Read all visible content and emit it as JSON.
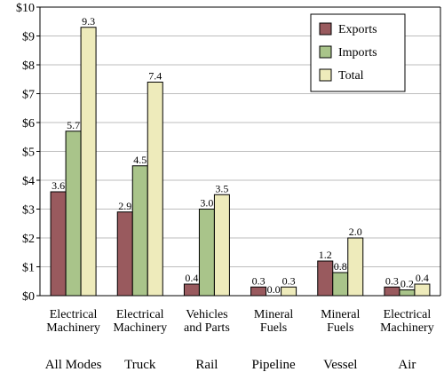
{
  "chart_data": {
    "type": "bar",
    "y_axis": {
      "min": 0,
      "max": 10,
      "step": 1,
      "tick_labels": [
        "$0",
        "$1",
        "$2",
        "$3",
        "$4",
        "$5",
        "$6",
        "$7",
        "$8",
        "$9",
        "$10"
      ]
    },
    "grid": true,
    "legend_position": "top-right",
    "series": [
      {
        "name": "Exports",
        "color": "#995a5e"
      },
      {
        "name": "Imports",
        "color": "#a9c48a"
      },
      {
        "name": "Total",
        "color": "#eeebbb"
      }
    ],
    "categories": [
      {
        "label_lines": [
          "Electrical",
          "Machinery"
        ],
        "group": "All Modes",
        "values": [
          3.6,
          5.7,
          9.3
        ],
        "labels": [
          "3.6",
          "5.7",
          "9.3"
        ]
      },
      {
        "label_lines": [
          "Electrical",
          "Machinery"
        ],
        "group": "Truck",
        "values": [
          2.9,
          4.5,
          7.4
        ],
        "labels": [
          "2.9",
          "4.5",
          "7.4"
        ]
      },
      {
        "label_lines": [
          "Vehicles",
          "and Parts"
        ],
        "group": "Rail",
        "values": [
          0.4,
          3.0,
          3.5
        ],
        "labels": [
          "0.4",
          "3.0",
          "3.5"
        ]
      },
      {
        "label_lines": [
          "Mineral",
          "Fuels"
        ],
        "group": "Pipeline",
        "values": [
          0.3,
          0.0,
          0.3
        ],
        "labels": [
          "0.3",
          "0.0",
          "0.3"
        ]
      },
      {
        "label_lines": [
          "Mineral",
          "Fuels"
        ],
        "group": "Vessel",
        "values": [
          1.2,
          0.8,
          2.0
        ],
        "labels": [
          "1.2",
          "0.8",
          "2.0"
        ]
      },
      {
        "label_lines": [
          "Electrical",
          "Machinery"
        ],
        "group": "Air",
        "values": [
          0.3,
          0.2,
          0.4
        ],
        "labels": [
          "0.3",
          "0.2",
          "0.4"
        ]
      }
    ]
  }
}
